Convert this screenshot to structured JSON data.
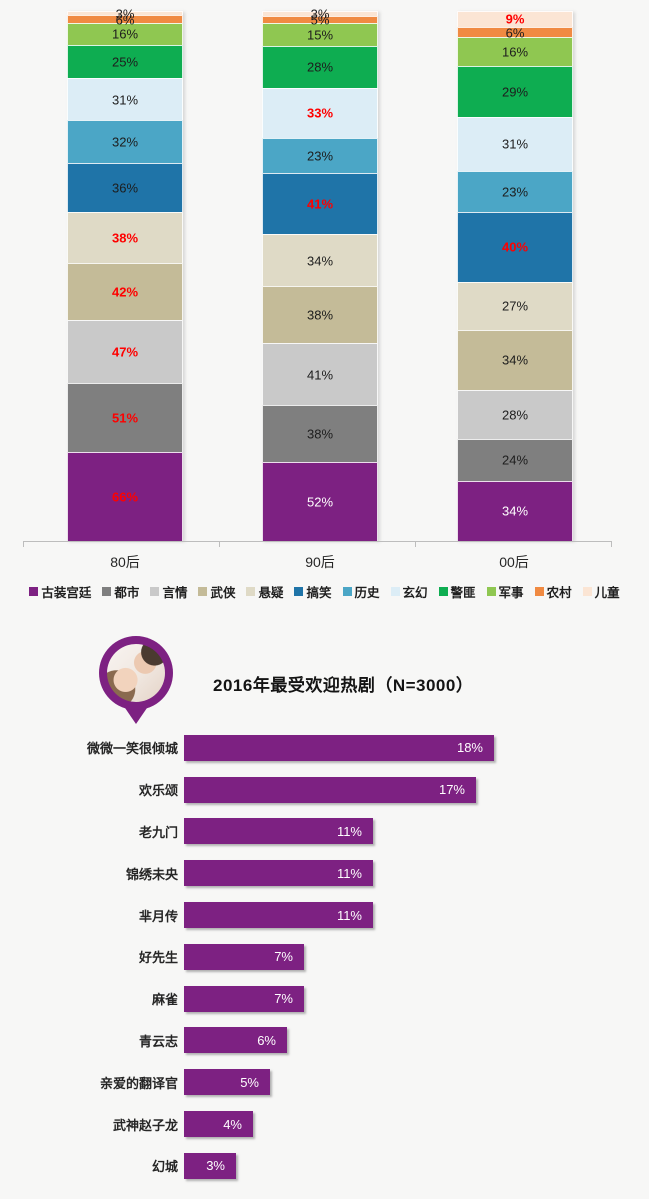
{
  "page": {
    "background_color": "#f7f7f6",
    "accent_color": "#7d2182",
    "red_label_color": "#fe0000"
  },
  "chart_data": [
    {
      "type": "bar",
      "variant": "stacked-100-percent",
      "title": "",
      "categories": [
        "80后",
        "90后",
        "00后"
      ],
      "legend_position": "bottom",
      "legend_order": [
        "古装宫廷",
        "都市",
        "言情",
        "武侠",
        "悬疑",
        "搞笑",
        "历史",
        "玄幻",
        "警匪",
        "军事",
        "农村",
        "儿童"
      ],
      "colors": {
        "古装宫廷": "#7d2182",
        "都市": "#7f7f7f",
        "言情": "#c9c9c9",
        "武侠": "#c4bb98",
        "悬疑": "#dfdac6",
        "搞笑": "#1f74a8",
        "历史": "#4ba6c6",
        "玄幻": "#dcedf6",
        "警匪": "#0ead51",
        "军事": "#8fc751",
        "农村": "#f08a42",
        "儿童": "#fbe5d4"
      },
      "stack_order": "bottom_to_top",
      "series": [
        {
          "name": "古装宫廷",
          "values": [
            66,
            52,
            34
          ],
          "label_styles": [
            "red",
            "white",
            "white"
          ]
        },
        {
          "name": "都市",
          "values": [
            51,
            38,
            24
          ],
          "label_styles": [
            "red",
            "dark",
            "dark"
          ]
        },
        {
          "name": "言情",
          "values": [
            47,
            41,
            28
          ],
          "label_styles": [
            "red",
            "dark",
            "dark"
          ]
        },
        {
          "name": "武侠",
          "values": [
            42,
            38,
            34
          ],
          "label_styles": [
            "red",
            "dark",
            "dark"
          ]
        },
        {
          "name": "悬疑",
          "values": [
            38,
            34,
            27
          ],
          "label_styles": [
            "red",
            "dark",
            "dark"
          ]
        },
        {
          "name": "搞笑",
          "values": [
            36,
            41,
            40
          ],
          "label_styles": [
            "dark",
            "red",
            "red"
          ]
        },
        {
          "name": "历史",
          "values": [
            32,
            23,
            23
          ],
          "label_styles": [
            "dark",
            "dark",
            "dark"
          ]
        },
        {
          "name": "玄幻",
          "values": [
            31,
            33,
            31
          ],
          "label_styles": [
            "dark",
            "red",
            "dark"
          ]
        },
        {
          "name": "警匪",
          "values": [
            25,
            28,
            29
          ],
          "label_styles": [
            "dark",
            "dark",
            "dark"
          ]
        },
        {
          "name": "军事",
          "values": [
            16,
            15,
            16
          ],
          "label_styles": [
            "dark",
            "dark",
            "dark"
          ]
        },
        {
          "name": "农村",
          "values": [
            6,
            5,
            6
          ],
          "label_styles": [
            "dark",
            "dark",
            "dark"
          ]
        },
        {
          "name": "儿童",
          "values": [
            3,
            3,
            9
          ],
          "label_styles": [
            "dark",
            "dark",
            "red"
          ]
        }
      ],
      "value_suffix": "%"
    },
    {
      "type": "bar",
      "orientation": "horizontal",
      "title": "2016年最受欢迎热剧（N=3000）",
      "categories": [
        "微微一笑很倾城",
        "欢乐颂",
        "老九门",
        "锦绣未央",
        "芈月传",
        "好先生",
        "麻雀",
        "青云志",
        "亲爱的翻译官",
        "武神赵子龙",
        "幻城"
      ],
      "values": [
        18,
        17,
        11,
        11,
        11,
        7,
        7,
        6,
        5,
        4,
        3
      ],
      "labels": [
        "18%",
        "17%",
        "11%",
        "11%",
        "11%",
        "7%",
        "7%",
        "6%",
        "5%",
        "4%",
        "3%"
      ],
      "bar_color": "#7d2182",
      "xlim": [
        0,
        18
      ],
      "grid": false
    }
  ]
}
